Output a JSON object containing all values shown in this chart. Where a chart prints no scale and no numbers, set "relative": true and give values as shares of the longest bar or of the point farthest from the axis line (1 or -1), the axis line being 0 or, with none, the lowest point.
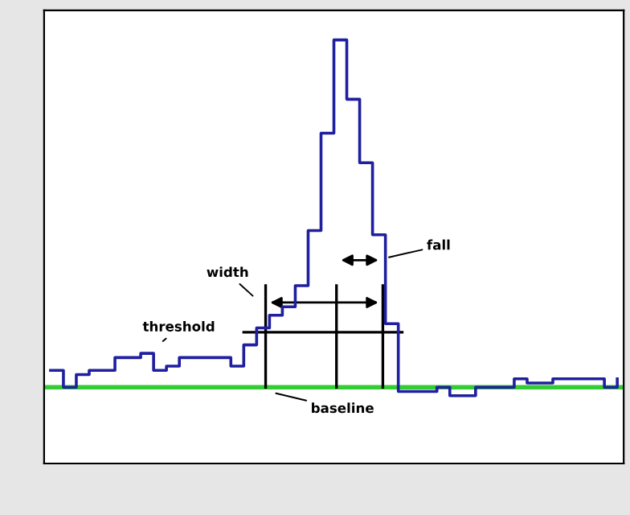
{
  "chart_data": {
    "type": "step",
    "relative": true,
    "categories": [
      null,
      null,
      null,
      null,
      null,
      null,
      null,
      null,
      null,
      null,
      null,
      null,
      null,
      null,
      null,
      null,
      null,
      null,
      null,
      null,
      null,
      null,
      null,
      null,
      null,
      null,
      null,
      null,
      null,
      null,
      null,
      null,
      null,
      null,
      null,
      null,
      null,
      null,
      null,
      null,
      null,
      null,
      null,
      null,
      null
    ],
    "series": [
      {
        "color": "#1f1fa0",
        "values": [
          0.22,
          0.18,
          0.21,
          0.22,
          0.22,
          0.25,
          0.25,
          0.26,
          0.22,
          0.23,
          0.25,
          0.25,
          0.25,
          0.25,
          0.23,
          0.28,
          0.32,
          0.35,
          0.37,
          0.42,
          0.55,
          0.78,
          1.0,
          0.86,
          0.71,
          0.54,
          0.33,
          0.17,
          0.17,
          0.17,
          0.18,
          0.16,
          0.16,
          0.18,
          0.18,
          0.18,
          0.2,
          0.19,
          0.19,
          0.2,
          0.2,
          0.2,
          0.2,
          0.18,
          0.2
        ]
      }
    ],
    "ref_lines": [
      {
        "axis": "y",
        "value": 0.18,
        "color": "#33cc33"
      }
    ],
    "annotations": [
      "threshold",
      "width",
      "fall",
      "baseline"
    ]
  }
}
